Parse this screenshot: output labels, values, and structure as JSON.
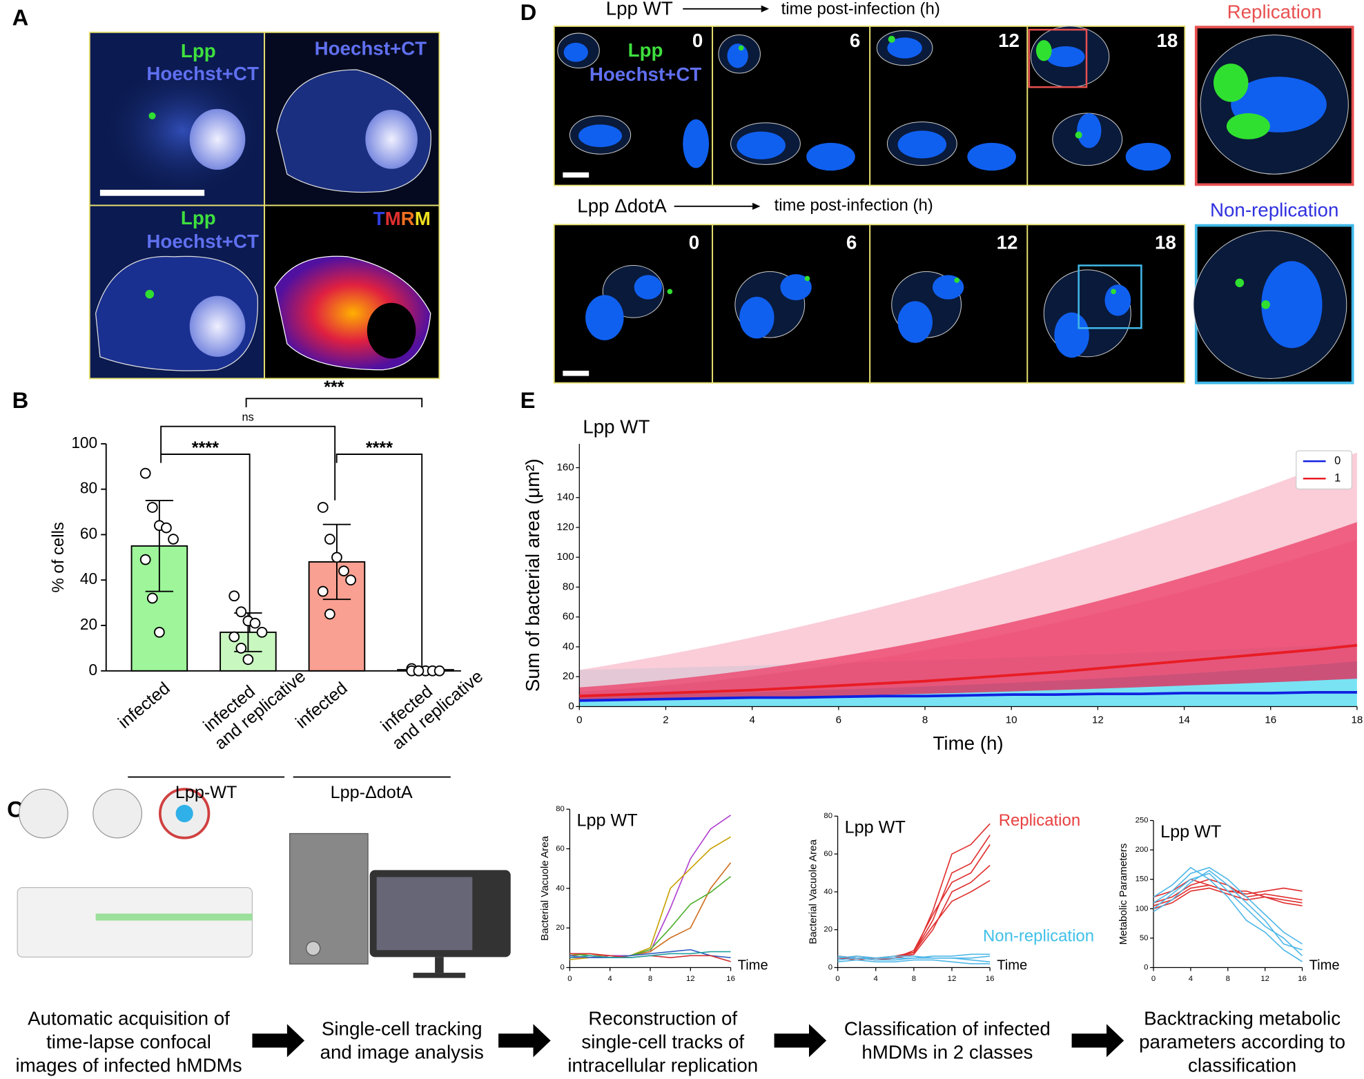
{
  "panel_letters": [
    "A",
    "B",
    "C",
    "D",
    "E"
  ],
  "panel_a": {
    "tile_texts": [
      "Lpp",
      "Hoechst+CT",
      "Hoechst+CT",
      "Lpp",
      "Hoechst+CT"
    ],
    "stain": "TMRM"
  },
  "panel_d": {
    "row1_title": "Lpp WT",
    "row2_title": "Lpp ΔdotA",
    "time_axis": "time post-infection (h)",
    "times": [
      "0",
      "6",
      "12",
      "18"
    ],
    "stain_labels": [
      "Lpp",
      "Hoechst+CT"
    ],
    "zoom_labels": [
      "Replication",
      "Non-replication"
    ]
  },
  "panel_c": {
    "steps": [
      [
        "Automatic acquisition of",
        "time-lapse confocal",
        "images of infected hMDMs"
      ],
      [
        "Single-cell tracking",
        "and image analysis"
      ],
      [
        "Reconstruction of",
        "single-cell tracks of",
        "intracellular replication"
      ],
      [
        "Classification of infected",
        "hMDMs in 2 classes"
      ],
      [
        "Backtracking metabolic",
        "parameters according to",
        "classification"
      ]
    ],
    "chart2_labels": [
      "Replication",
      "Non-replication"
    ]
  },
  "chart_data": [
    {
      "type": "bar",
      "ylabel": "% of cells",
      "categories": [
        "infected",
        "infected and replicative",
        "infected",
        "infected and replicative"
      ],
      "values": [
        55,
        17,
        48,
        0.5
      ],
      "errors": [
        20,
        8.5,
        16.5,
        0
      ],
      "colors": [
        "#9ef59a",
        "#c9f7c0",
        "#f9a092",
        "#ffffff"
      ],
      "points": [
        [
          87,
          72,
          64,
          63,
          58,
          49,
          32,
          17
        ],
        [
          33,
          26,
          22,
          21,
          17,
          15,
          10,
          5
        ],
        [
          72,
          58,
          50,
          44,
          40,
          35,
          25
        ],
        [
          1,
          0,
          0,
          0,
          0,
          0,
          0
        ]
      ],
      "ylim": [
        0,
        100
      ],
      "yticks": [
        0,
        20,
        40,
        60,
        80,
        100
      ],
      "significance": [
        "****",
        "****",
        "ns",
        "***"
      ],
      "groups": [
        "Lpp-WT",
        "Lpp-ΔdotA"
      ]
    },
    {
      "type": "line",
      "title": "Lpp WT",
      "xlabel": "Time (h)",
      "ylabel": "Sum of bacterial area (μm²)",
      "x": [
        0,
        1,
        2,
        3,
        4,
        5,
        6,
        7,
        8,
        9,
        10,
        11,
        12,
        13,
        14,
        15,
        16,
        17,
        18
      ],
      "series": [
        {
          "name": "0",
          "color": "#1020e0",
          "values": [
            4,
            4.5,
            5,
            5.5,
            6,
            6,
            6.5,
            7,
            7,
            7.5,
            8,
            8,
            8.5,
            8.5,
            9,
            9,
            9,
            9.5,
            9.5
          ]
        },
        {
          "name": "1",
          "color": "#e81c24",
          "values": [
            7,
            8,
            9,
            10,
            11,
            12.5,
            14,
            15.5,
            17,
            19,
            21,
            23,
            25.5,
            28,
            30.5,
            33,
            35.5,
            38,
            41
          ]
        }
      ],
      "xlim": [
        0,
        18
      ],
      "ylim": [
        0,
        176
      ],
      "xticks": [
        0,
        2,
        4,
        6,
        8,
        10,
        12,
        14,
        16,
        18
      ],
      "yticks": [
        0,
        20,
        40,
        60,
        80,
        100,
        120,
        140,
        160
      ],
      "legend": "upper right"
    },
    {
      "type": "line",
      "title": "Lpp WT",
      "xlabel": "Time",
      "ylabel": "Bacterial Vacuole Area",
      "x": [
        0,
        2,
        4,
        6,
        8,
        10,
        12,
        14,
        16
      ],
      "series": [
        {
          "color": "#b040d0",
          "values": [
            5,
            5,
            6,
            6,
            8,
            30,
            55,
            70,
            77
          ]
        },
        {
          "color": "#d07020",
          "values": [
            6,
            7,
            5,
            6,
            8,
            15,
            20,
            40,
            53
          ]
        },
        {
          "color": "#c8a000",
          "values": [
            4,
            5,
            5,
            6,
            10,
            40,
            50,
            60,
            66
          ]
        },
        {
          "color": "#50b030",
          "values": [
            7,
            6,
            5,
            6,
            9,
            20,
            32,
            38,
            46
          ]
        },
        {
          "color": "#3060c0",
          "values": [
            6,
            5,
            5,
            6,
            7,
            8,
            9,
            6,
            5
          ]
        },
        {
          "color": "#d03030",
          "values": [
            7,
            7,
            6,
            5,
            6,
            5,
            6,
            6,
            3
          ]
        },
        {
          "color": "#20a0a0",
          "values": [
            5,
            6,
            5,
            5,
            6,
            7,
            7,
            8,
            8
          ]
        }
      ],
      "xlim": [
        0,
        16
      ],
      "ylim": [
        0,
        80
      ],
      "xticks": [
        0,
        4,
        8,
        12,
        16
      ],
      "yticks": [
        0,
        20,
        40,
        60,
        80
      ]
    },
    {
      "type": "line",
      "title": "Lpp WT",
      "xlabel": "Time",
      "ylabel": "Bacterial Vacuole Area",
      "x": [
        0,
        2,
        4,
        6,
        8,
        10,
        12,
        14,
        16
      ],
      "series": [
        {
          "color": "#e03030",
          "values": [
            5,
            5,
            5,
            5,
            7,
            30,
            60,
            65,
            76
          ]
        },
        {
          "color": "#e03030",
          "values": [
            6,
            5,
            4,
            5,
            8,
            25,
            50,
            55,
            70
          ]
        },
        {
          "color": "#e03030",
          "values": [
            5,
            6,
            5,
            5,
            9,
            28,
            45,
            50,
            65
          ]
        },
        {
          "color": "#e03030",
          "values": [
            6,
            5,
            5,
            5,
            7,
            20,
            40,
            45,
            54
          ]
        },
        {
          "color": "#e03030",
          "values": [
            5,
            4,
            5,
            6,
            8,
            22,
            35,
            40,
            46
          ]
        },
        {
          "color": "#50b8e8",
          "values": [
            5,
            6,
            5,
            5,
            5,
            6,
            6,
            7,
            7
          ]
        },
        {
          "color": "#50b8e8",
          "values": [
            4,
            5,
            4,
            4,
            5,
            5,
            5,
            5,
            6
          ]
        },
        {
          "color": "#50b8e8",
          "values": [
            6,
            5,
            5,
            6,
            6,
            5,
            5,
            4,
            3
          ]
        },
        {
          "color": "#50b8e8",
          "values": [
            3,
            4,
            3,
            3,
            4,
            4,
            3,
            2,
            2
          ]
        }
      ],
      "xlim": [
        0,
        16
      ],
      "ylim": [
        0,
        80
      ],
      "xticks": [
        0,
        4,
        8,
        12,
        16
      ],
      "yticks": [
        0,
        20,
        40,
        60,
        80
      ]
    },
    {
      "type": "line",
      "title": "Lpp WT",
      "xlabel": "Time",
      "ylabel": "Metabolic Parameters",
      "x": [
        0,
        2,
        4,
        6,
        8,
        10,
        12,
        14,
        16
      ],
      "series": [
        {
          "color": "#e03030",
          "values": [
            120,
            130,
            150,
            140,
            130,
            125,
            130,
            135,
            130
          ]
        },
        {
          "color": "#e03030",
          "values": [
            110,
            120,
            140,
            150,
            140,
            120,
            125,
            120,
            115
          ]
        },
        {
          "color": "#e03030",
          "values": [
            105,
            115,
            135,
            140,
            130,
            130,
            120,
            115,
            110
          ]
        },
        {
          "color": "#e03030",
          "values": [
            100,
            110,
            130,
            135,
            125,
            115,
            120,
            110,
            105
          ]
        },
        {
          "color": "#50b8e8",
          "values": [
            110,
            130,
            160,
            170,
            150,
            120,
            90,
            60,
            40
          ]
        },
        {
          "color": "#50b8e8",
          "values": [
            100,
            125,
            150,
            160,
            130,
            100,
            70,
            50,
            20
          ]
        },
        {
          "color": "#50b8e8",
          "values": [
            120,
            140,
            170,
            150,
            120,
            80,
            60,
            30,
            10
          ]
        },
        {
          "color": "#50b8e8",
          "values": [
            95,
            115,
            145,
            165,
            140,
            110,
            80,
            40,
            30
          ]
        }
      ],
      "xlim": [
        0,
        16
      ],
      "ylim": [
        0,
        250
      ],
      "xticks": [
        0,
        4,
        8,
        12,
        16
      ],
      "yticks": [
        0,
        50,
        100,
        150,
        200,
        250
      ]
    }
  ]
}
